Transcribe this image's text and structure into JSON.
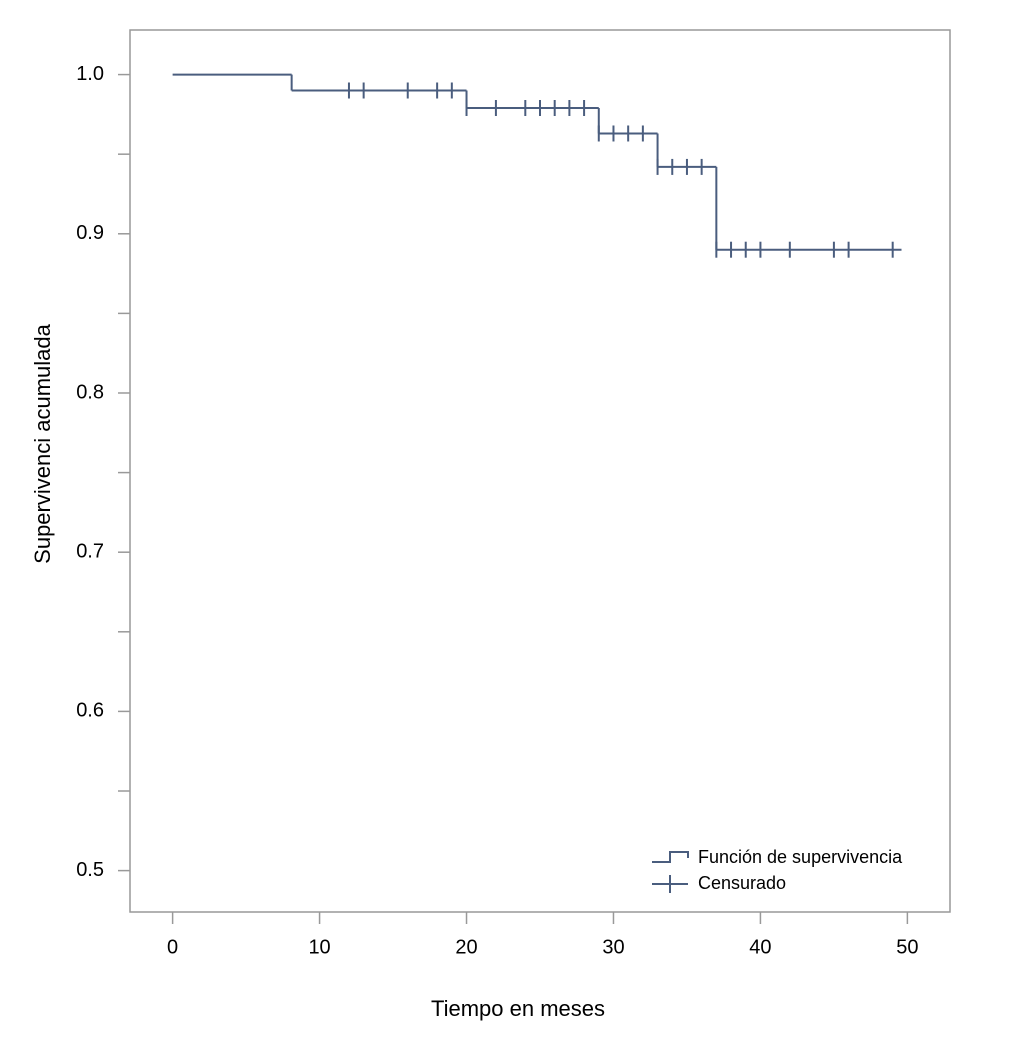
{
  "chart_data": {
    "type": "step",
    "x_label": "Tiempo en meses",
    "y_label": "Supervivenci acumulada",
    "xlim": [
      -2.9,
      52.9
    ],
    "ylim": [
      0.474,
      1.028
    ],
    "xticks": [
      0,
      10,
      20,
      30,
      40,
      50
    ],
    "yticks": [
      {
        "value": 0.5,
        "label": "0.5"
      },
      {
        "value": 0.6,
        "label": "0.6"
      },
      {
        "value": 0.7,
        "label": "0.7"
      },
      {
        "value": 0.8,
        "label": "0.8"
      },
      {
        "value": 0.9,
        "label": "0.9"
      },
      {
        "value": 1,
        "label": "1.0"
      }
    ],
    "y_minor_ticks": [
      0.55,
      0.65,
      0.75,
      0.85,
      0.95
    ],
    "legend": "lower right",
    "series": [
      {
        "name": "Función de supervivencia",
        "color": "#4a5d7e",
        "x": [
          0,
          8.1,
          20,
          29,
          33,
          37,
          49.6
        ],
        "values": [
          1.0,
          0.99,
          0.979,
          0.963,
          0.942,
          0.89,
          0.89
        ]
      },
      {
        "name": "Censurado",
        "color": "#4a5d7e",
        "x": [
          12,
          13,
          16,
          18,
          19,
          20,
          22,
          24,
          25,
          26,
          27,
          28,
          29,
          30,
          31,
          32,
          33,
          34,
          35,
          36,
          37,
          38,
          39,
          40,
          42,
          45,
          46,
          49
        ],
        "values": [
          0.99,
          0.99,
          0.99,
          0.99,
          0.99,
          0.979,
          0.979,
          0.979,
          0.979,
          0.979,
          0.979,
          0.979,
          0.963,
          0.963,
          0.963,
          0.963,
          0.942,
          0.942,
          0.942,
          0.942,
          0.89,
          0.89,
          0.89,
          0.89,
          0.89,
          0.89,
          0.89,
          0.89
        ]
      }
    ]
  }
}
